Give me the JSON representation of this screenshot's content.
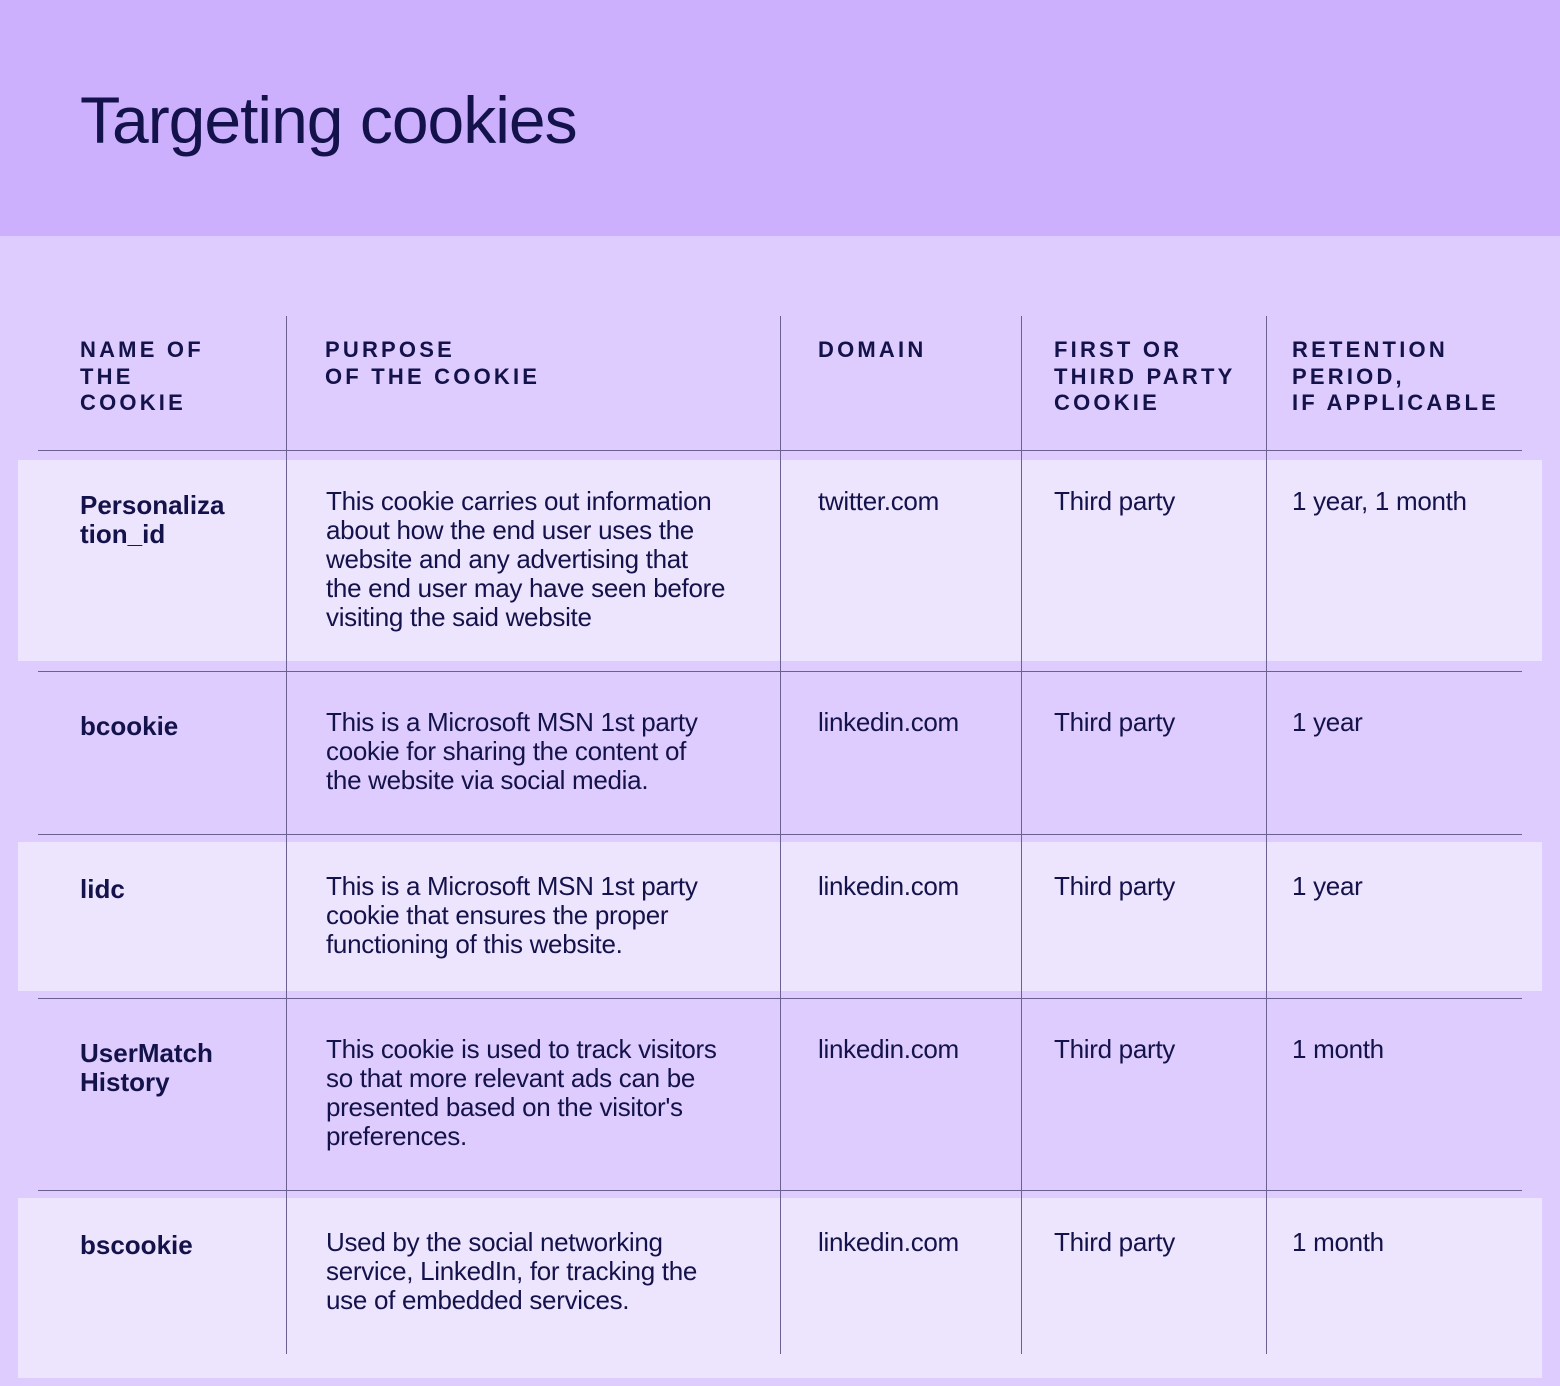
{
  "title": "Targeting cookies",
  "columns": [
    "NAME OF\nTHE\nCOOKIE",
    "PURPOSE\nOF THE COOKIE",
    "DOMAIN",
    "FIRST OR\nTHIRD PARTY\nCOOKIE",
    "RETENTION\nPERIOD,\nIF APPLICABLE"
  ],
  "rows": [
    {
      "name": "Personaliza\ntion_id",
      "purpose": "This cookie carries out information\nabout how the end user uses the\nwebsite and any advertising that\nthe end user may have seen before\nvisiting the said website",
      "domain": "twitter.com",
      "party": "Third party",
      "retention": "1 year, 1 month"
    },
    {
      "name": "bcookie",
      "purpose": "This is a Microsoft MSN 1st party\ncookie for sharing the content of\nthe website via social media.",
      "domain": "linkedin.com",
      "party": "Third party",
      "retention": "1 year"
    },
    {
      "name": "lidc",
      "purpose": "This is a Microsoft MSN 1st party\ncookie that ensures the proper\nfunctioning of this website.",
      "domain": "linkedin.com",
      "party": "Third party",
      "retention": "1 year"
    },
    {
      "name": "UserMatch\nHistory",
      "purpose": "This cookie is used to track visitors\nso that more relevant ads can be\npresented based on the visitor's\npreferences.",
      "domain": "linkedin.com",
      "party": "Third party",
      "retention": "1 month"
    },
    {
      "name": "bscookie",
      "purpose": "Used by the social networking\nservice, LinkedIn, for tracking the\nuse of embedded services.",
      "domain": "linkedin.com",
      "party": "Third party",
      "retention": "1 month"
    }
  ]
}
